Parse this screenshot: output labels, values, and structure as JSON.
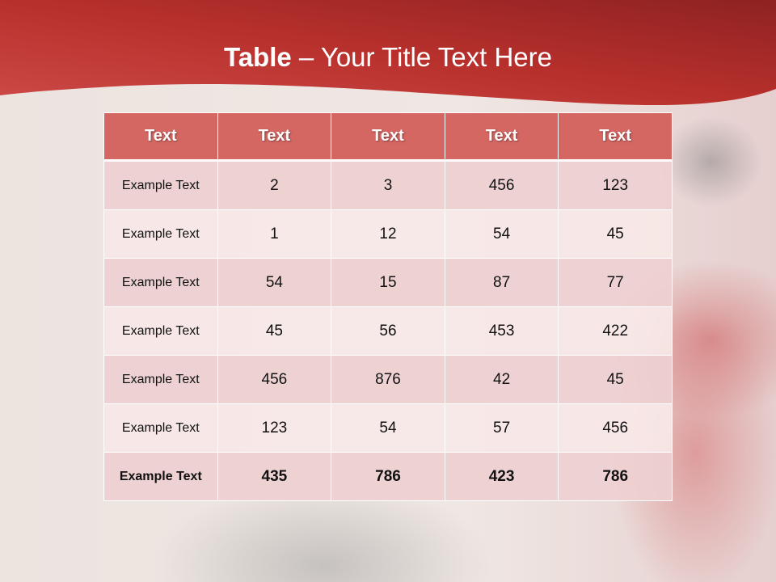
{
  "title": {
    "bold": "Table",
    "rest": " – Your Title Text Here"
  },
  "colors": {
    "banner": "#b8302c",
    "header": "#d56763",
    "row_odd": "#eed0d1",
    "row_even": "#f8e8e7"
  },
  "table": {
    "headers": [
      "Text",
      "Text",
      "Text",
      "Text",
      "Text"
    ],
    "rows": [
      [
        "Example Text",
        "2",
        "3",
        "456",
        "123"
      ],
      [
        "Example Text",
        "1",
        "12",
        "54",
        "45"
      ],
      [
        "Example Text",
        "54",
        "15",
        "87",
        "77"
      ],
      [
        "Example Text",
        "45",
        "56",
        "453",
        "422"
      ],
      [
        "Example Text",
        "456",
        "876",
        "42",
        "45"
      ],
      [
        "Example Text",
        "123",
        "54",
        "57",
        "456"
      ],
      [
        "Example Text",
        "435",
        "786",
        "423",
        "786"
      ]
    ]
  }
}
